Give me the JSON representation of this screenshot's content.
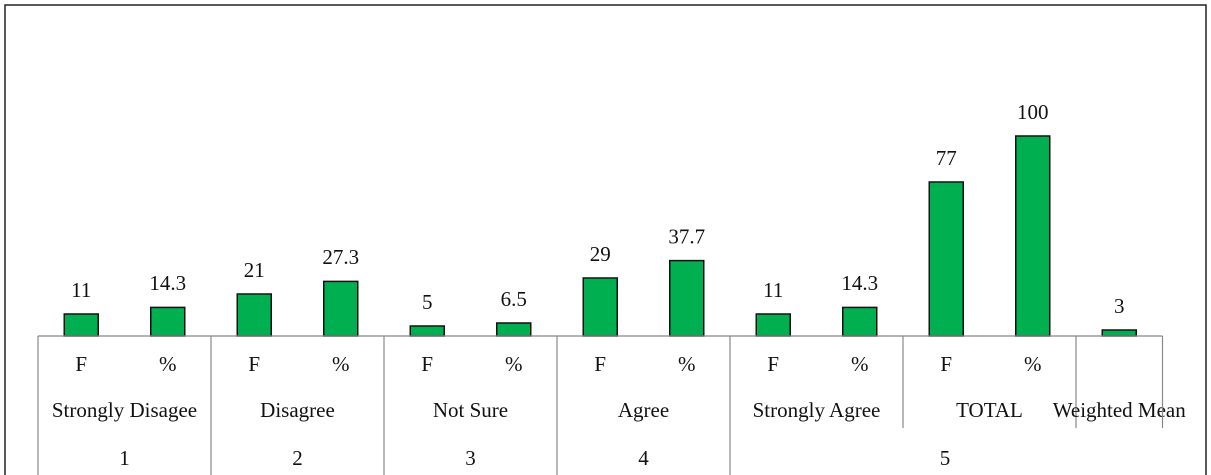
{
  "chart_data": {
    "type": "bar",
    "categories": [
      "F",
      "%",
      "F",
      "%",
      "F",
      "%",
      "F",
      "%",
      "F",
      "%",
      "F",
      "%",
      null
    ],
    "values": [
      11,
      14.3,
      21,
      27.3,
      5,
      6.5,
      29,
      37.7,
      11,
      14.3,
      77,
      100,
      3
    ],
    "color": "#00b050",
    "groups": [
      "Strongly Disagee",
      "Disagree",
      "Not Sure",
      "Agree",
      "Strongly Agree",
      "TOTAL",
      "Weighted Mean"
    ],
    "top_groups": [
      "1",
      "2",
      "3",
      "4",
      "5"
    ]
  }
}
